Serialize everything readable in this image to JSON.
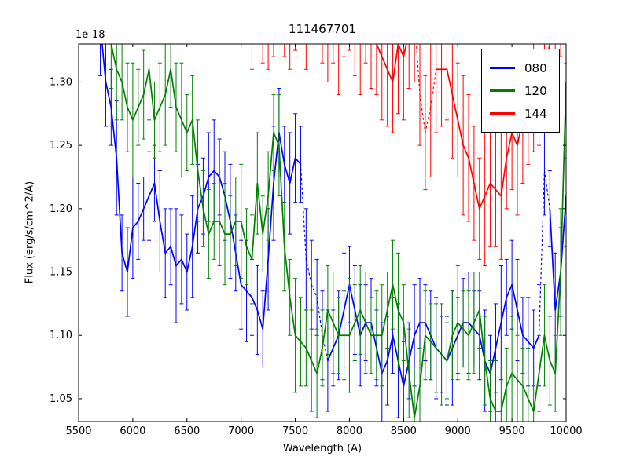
{
  "figure": {
    "title": "111467701",
    "offset_text": "1e-18",
    "xlabel": "Wavelength (A)",
    "ylabel": "Flux (erg/s/cm^2/A)"
  },
  "chart_data": {
    "type": "line",
    "title": "111467701",
    "xlabel": "Wavelength (A)",
    "ylabel": "Flux (erg/s/cm^2/A)",
    "y_offset_factor": "1e-18",
    "xlim": [
      5500,
      10000
    ],
    "ylim": [
      1.032,
      1.33
    ],
    "xticks": [
      5500,
      6000,
      6500,
      7000,
      7500,
      8000,
      8500,
      9000,
      9500,
      10000
    ],
    "yticks": [
      1.05,
      1.1,
      1.15,
      1.2,
      1.25,
      1.3
    ],
    "grid": false,
    "legend_position": "upper right",
    "series": [
      {
        "name": "080",
        "color": "#0000ff",
        "x0": 5700,
        "dx": 50,
        "dotted_ranges": [
          [
            7560,
            7790
          ],
          [
            9740,
            9860
          ]
        ],
        "y": [
          1.345,
          1.3,
          1.28,
          1.24,
          1.165,
          1.15,
          1.185,
          1.19,
          1.2,
          1.21,
          1.22,
          1.19,
          1.165,
          1.17,
          1.155,
          1.16,
          1.15,
          1.17,
          1.2,
          1.21,
          1.225,
          1.23,
          1.225,
          1.21,
          1.19,
          1.165,
          1.14,
          1.135,
          1.13,
          1.12,
          1.105,
          1.16,
          1.22,
          1.26,
          1.235,
          1.22,
          1.24,
          1.235,
          1.16,
          1.14,
          1.13,
          1.1,
          1.08,
          1.09,
          1.1,
          1.12,
          1.14,
          1.12,
          1.1,
          1.11,
          1.11,
          1.09,
          1.07,
          1.08,
          1.1,
          1.08,
          1.06,
          1.08,
          1.1,
          1.11,
          1.11,
          1.1,
          1.09,
          1.085,
          1.08,
          1.09,
          1.1,
          1.11,
          1.11,
          1.105,
          1.1,
          1.08,
          1.07,
          1.09,
          1.11,
          1.13,
          1.14,
          1.12,
          1.1,
          1.095,
          1.09,
          1.1,
          1.23,
          1.2,
          1.12,
          1.15,
          1.21
        ],
        "yerr": [
          0.04,
          0.035,
          0.03,
          0.045,
          0.03,
          0.035,
          0.04,
          0.03,
          0.025,
          0.035,
          0.03,
          0.04,
          0.035,
          0.03,
          0.045,
          0.035,
          0.03,
          0.04,
          0.035,
          0.03,
          0.035,
          0.04,
          0.03,
          0.035,
          0.045,
          0.03,
          0.035,
          0.04,
          0.03,
          0.035,
          0.03,
          0.04,
          0.045,
          0.035,
          0.03,
          0.04,
          0.035,
          0.03,
          0.04,
          0.035,
          0.03,
          0.035,
          0.04,
          0.03,
          0.035,
          0.045,
          0.03,
          0.035,
          0.04,
          0.03,
          0.035,
          0.03,
          0.04,
          0.035,
          0.03,
          0.045,
          0.035,
          0.03,
          0.04,
          0.035,
          0.03,
          0.035,
          0.04,
          0.03,
          0.035,
          0.045,
          0.03,
          0.035,
          0.04,
          0.03,
          0.035,
          0.04,
          0.03,
          0.035,
          0.045,
          0.03,
          0.035,
          0.04,
          0.03,
          0.035,
          0.03,
          0.04,
          0.035,
          0.03,
          0.045,
          0.035,
          0.04
        ]
      },
      {
        "name": "120",
        "color": "#008000",
        "x0": 5800,
        "dx": 50,
        "dotted_ranges": [],
        "y": [
          1.33,
          1.31,
          1.3,
          1.28,
          1.27,
          1.28,
          1.29,
          1.31,
          1.27,
          1.28,
          1.29,
          1.31,
          1.28,
          1.27,
          1.26,
          1.27,
          1.23,
          1.2,
          1.18,
          1.19,
          1.19,
          1.18,
          1.18,
          1.19,
          1.19,
          1.17,
          1.16,
          1.22,
          1.18,
          1.21,
          1.26,
          1.25,
          1.17,
          1.13,
          1.1,
          1.095,
          1.09,
          1.08,
          1.07,
          1.09,
          1.12,
          1.11,
          1.1,
          1.1,
          1.1,
          1.11,
          1.12,
          1.11,
          1.1,
          1.1,
          1.1,
          1.12,
          1.14,
          1.12,
          1.11,
          1.07,
          1.035,
          1.06,
          1.1,
          1.095,
          1.09,
          1.085,
          1.08,
          1.1,
          1.11,
          1.105,
          1.1,
          1.11,
          1.12,
          1.08,
          1.05,
          1.04,
          1.04,
          1.06,
          1.07,
          1.065,
          1.06,
          1.05,
          1.04,
          1.07,
          1.1,
          1.08,
          1.07,
          1.15,
          1.3
        ],
        "yerr": [
          0.035,
          0.04,
          0.03,
          0.035,
          0.045,
          0.03,
          0.035,
          0.04,
          0.03,
          0.035,
          0.04,
          0.03,
          0.035,
          0.045,
          0.03,
          0.035,
          0.04,
          0.03,
          0.035,
          0.03,
          0.035,
          0.04,
          0.03,
          0.035,
          0.045,
          0.03,
          0.035,
          0.04,
          0.03,
          0.035,
          0.03,
          0.04,
          0.035,
          0.03,
          0.045,
          0.035,
          0.03,
          0.04,
          0.035,
          0.03,
          0.035,
          0.04,
          0.03,
          0.035,
          0.045,
          0.03,
          0.035,
          0.04,
          0.03,
          0.035,
          0.04,
          0.03,
          0.035,
          0.045,
          0.03,
          0.035,
          0.04,
          0.03,
          0.035,
          0.03,
          0.035,
          0.04,
          0.03,
          0.035,
          0.045,
          0.03,
          0.035,
          0.04,
          0.03,
          0.035,
          0.03,
          0.04,
          0.035,
          0.03,
          0.045,
          0.035,
          0.03,
          0.04,
          0.035,
          0.03,
          0.04,
          0.035,
          0.03,
          0.05,
          0.06
        ]
      },
      {
        "name": "144",
        "color": "#ff0000",
        "x0": 7100,
        "dx": 50,
        "dotted_ranges": [
          [
            8590,
            8810
          ]
        ],
        "y": [
          1.36,
          1.39,
          1.37,
          1.35,
          1.37,
          1.4,
          1.38,
          1.36,
          1.37,
          1.39,
          1.36,
          1.38,
          1.4,
          1.37,
          1.35,
          1.36,
          1.34,
          1.36,
          1.38,
          1.35,
          1.34,
          1.36,
          1.35,
          1.33,
          1.32,
          1.31,
          1.3,
          1.33,
          1.32,
          1.34,
          1.35,
          1.29,
          1.26,
          1.28,
          1.31,
          1.31,
          1.31,
          1.29,
          1.27,
          1.25,
          1.24,
          1.22,
          1.2,
          1.21,
          1.22,
          1.215,
          1.21,
          1.24,
          1.26,
          1.25,
          1.27,
          1.28,
          1.3,
          1.29,
          1.31,
          1.33,
          1.35,
          1.37,
          1.36
        ],
        "yerr": [
          0.05,
          0.045,
          0.055,
          0.04,
          0.05,
          0.045,
          0.06,
          0.05,
          0.045,
          0.055,
          0.05,
          0.045,
          0.04,
          0.055,
          0.05,
          0.045,
          0.05,
          0.04,
          0.055,
          0.045,
          0.05,
          0.045,
          0.055,
          0.04,
          0.05,
          0.045,
          0.04,
          0.055,
          0.05,
          0.045,
          0.05,
          0.04,
          0.045,
          0.055,
          0.05,
          0.045,
          0.04,
          0.05,
          0.045,
          0.055,
          0.05,
          0.045,
          0.04,
          0.055,
          0.05,
          0.045,
          0.05,
          0.04,
          0.045,
          0.055,
          0.05,
          0.045,
          0.055,
          0.04,
          0.05,
          0.045,
          0.055,
          0.05,
          0.045
        ]
      }
    ]
  }
}
